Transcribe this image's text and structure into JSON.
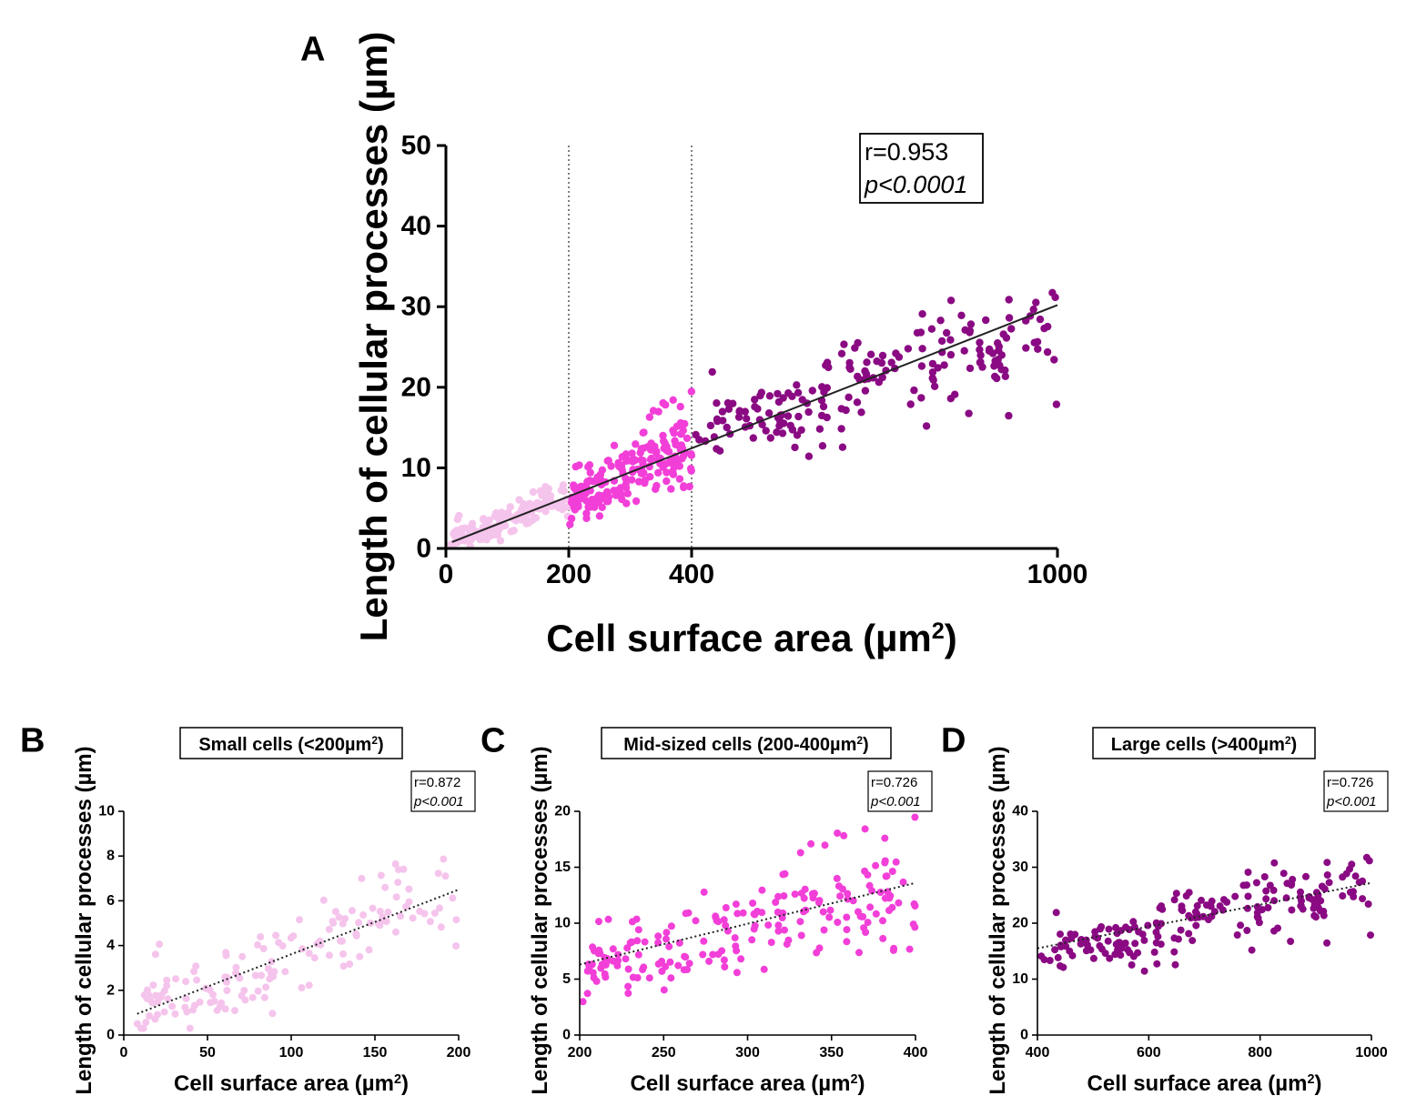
{
  "chart_data": [
    {
      "id": "A",
      "panel_label": "A",
      "type": "scatter",
      "title": "",
      "xlabel": "Cell surface area (µm",
      "xlabel_sup": "2",
      "xlabel_end": ")",
      "ylabel": "Length of cellular processes (µm)",
      "xlim": [
        0,
        1000
      ],
      "ylim": [
        0,
        50
      ],
      "x_ticks": [
        0,
        200,
        400,
        1000
      ],
      "y_ticks": [
        0,
        10,
        20,
        30,
        40,
        50
      ],
      "vlines": [
        200,
        400
      ],
      "fit_line": {
        "x": [
          10,
          1000
        ],
        "y": [
          0.8,
          30.2
        ],
        "style": "solid"
      },
      "stats": {
        "r": "r=0.953",
        "p": "p<0.0001"
      },
      "series": [
        {
          "name": "Small cells",
          "color": "#f5c4ec",
          "seed": 11,
          "count": 150,
          "xrange": [
            8,
            200
          ],
          "slope": 0.0278,
          "intercept": 0.8,
          "noise": 0.9
        },
        {
          "name": "Mid-sized cells",
          "color": "#f23fd8",
          "seed": 23,
          "count": 200,
          "xrange": [
            200,
            400
          ],
          "slope": 0.0365,
          "intercept": -1.0,
          "noise": 2.0
        },
        {
          "name": "Large cells",
          "color": "#8a0a83",
          "seed": 37,
          "count": 190,
          "xrange": [
            400,
            1000
          ],
          "slope": 0.0205,
          "intercept": 6.0,
          "noise": 2.8
        }
      ]
    },
    {
      "id": "B",
      "panel_label": "B",
      "type": "scatter",
      "title": "Small cells (<200µm",
      "title_sup": "2",
      "title_end": ")",
      "xlabel": "Cell surface area (µm",
      "xlabel_sup": "2",
      "xlabel_end": ")",
      "ylabel": "Length of cellular processes (µm)",
      "xlim": [
        0,
        200
      ],
      "ylim": [
        0,
        10
      ],
      "x_ticks": [
        0,
        50,
        100,
        150,
        200
      ],
      "y_ticks": [
        0,
        2,
        4,
        6,
        8,
        10
      ],
      "fit_line": {
        "x": [
          8,
          200
        ],
        "y": [
          0.95,
          6.5
        ],
        "style": "dotted"
      },
      "stats": {
        "r": "r=0.872",
        "p": "p<0.001"
      },
      "series": [
        {
          "name": "Small cells",
          "color": "#f5c4ec",
          "seed": 11,
          "count": 150,
          "xrange": [
            8,
            200
          ],
          "slope": 0.0278,
          "intercept": 0.8,
          "noise": 0.9
        }
      ]
    },
    {
      "id": "C",
      "panel_label": "C",
      "type": "scatter",
      "title": "Mid-sized cells (200-400µm",
      "title_sup": "2",
      "title_end": ")",
      "xlabel": "Cell surface area (µm",
      "xlabel_sup": "2",
      "xlabel_end": ")",
      "ylabel": "Length of cellular processes (µm)",
      "xlim": [
        200,
        400
      ],
      "ylim": [
        0,
        20
      ],
      "x_ticks": [
        200,
        250,
        300,
        350,
        400
      ],
      "y_ticks": [
        0,
        5,
        10,
        15,
        20
      ],
      "fit_line": {
        "x": [
          200,
          400
        ],
        "y": [
          6.3,
          13.6
        ],
        "style": "dotted"
      },
      "stats": {
        "r": "r=0.726",
        "p": "p<0.001"
      },
      "series": [
        {
          "name": "Mid-sized cells",
          "color": "#f23fd8",
          "seed": 23,
          "count": 200,
          "xrange": [
            200,
            400
          ],
          "slope": 0.0365,
          "intercept": -1.0,
          "noise": 2.0
        }
      ]
    },
    {
      "id": "D",
      "panel_label": "D",
      "type": "scatter",
      "title": "Large cells (>400µm",
      "title_sup": "2",
      "title_end": ")",
      "xlabel": "Cell surface area (µm",
      "xlabel_sup": "2",
      "xlabel_end": ")",
      "ylabel": "Length of cellular processes (µm)",
      "xlim": [
        400,
        1000
      ],
      "ylim": [
        0,
        40
      ],
      "x_ticks": [
        400,
        600,
        800,
        1000
      ],
      "y_ticks": [
        0,
        10,
        20,
        30,
        40
      ],
      "fit_line": {
        "x": [
          400,
          1000
        ],
        "y": [
          15.5,
          27.2
        ],
        "style": "dotted"
      },
      "stats": {
        "r": "r=0.726",
        "p": "p<0.001"
      },
      "series": [
        {
          "name": "Large cells",
          "color": "#8a0a83",
          "seed": 37,
          "count": 190,
          "xrange": [
            400,
            1000
          ],
          "slope": 0.0205,
          "intercept": 6.0,
          "noise": 2.8
        }
      ]
    }
  ]
}
